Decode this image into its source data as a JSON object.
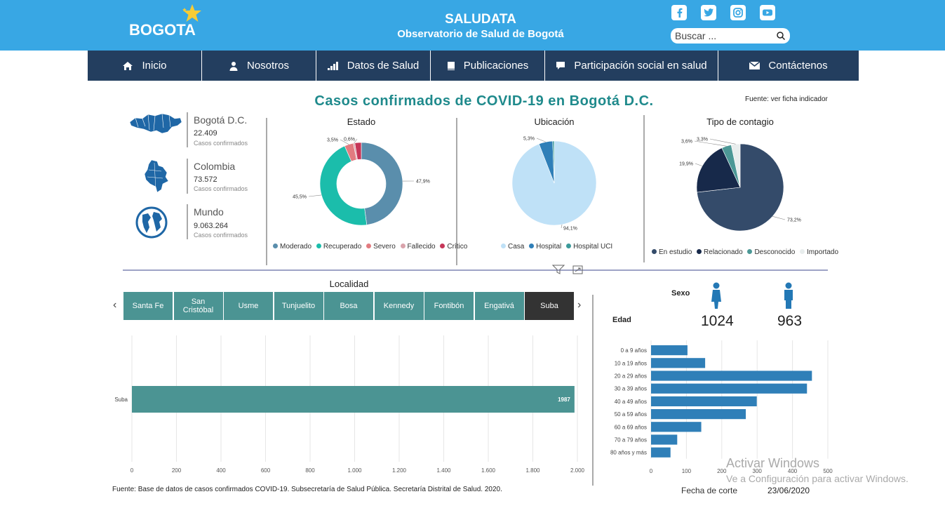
{
  "header": {
    "logo_text": "BOGOTA",
    "title": "SALUDATA",
    "subtitle": "Observatorio de Salud de Bogotá",
    "search_placeholder": "Buscar ...",
    "social_icons": [
      "facebook-icon",
      "twitter-icon",
      "instagram-icon",
      "youtube-icon"
    ]
  },
  "nav": {
    "items": [
      {
        "label": "Inicio",
        "icon": "home-icon"
      },
      {
        "label": "Nosotros",
        "icon": "user-icon"
      },
      {
        "label": "Datos de Salud",
        "icon": "bar-signal-icon"
      },
      {
        "label": "Publicaciones",
        "icon": "book-icon"
      },
      {
        "label": "Participación social en salud",
        "icon": "chat-icon"
      },
      {
        "label": "Contáctenos",
        "icon": "mail-icon"
      }
    ]
  },
  "dashboard": {
    "title": "Casos confirmados de COVID-19 en Bogotá D.C.",
    "source_top": "Fuente: ver ficha indicador",
    "locations": [
      {
        "name": "Bogotá D.C.",
        "value": "22.409",
        "sub": "Casos confirmados",
        "icon": "bogota-map-icon"
      },
      {
        "name": "Colombia",
        "value": "73.572",
        "sub": "Casos confirmados",
        "icon": "colombia-map-icon"
      },
      {
        "name": "Mundo",
        "value": "9.063.264",
        "sub": "Casos confirmados",
        "icon": "globe-icon"
      }
    ],
    "footnote": "Fuente: Base de datos de casos confirmados COVID-19. Subsecretaría de Salud Pública. Secretaría Distrital de Salud. 2020.",
    "localidad_title": "Localidad",
    "tabs": [
      "Santa Fe",
      "San Cristóbal",
      "Usme",
      "Tunjuelito",
      "Bosa",
      "Kennedy",
      "Fontibón",
      "Engativá",
      "Suba"
    ],
    "selected_tab": "Suba",
    "sexo_label": "Sexo",
    "edad_label": "Edad",
    "sexo": {
      "female": "1024",
      "male": "963"
    },
    "fecha_label": "Fecha de corte",
    "fecha_value": "23/06/2020",
    "watermark_line1": "Activar Windows",
    "watermark_line2": "Ve a Configuración para activar Windows.",
    "colors": {
      "teal": "#1f8a8c",
      "header": "#38a7e4",
      "nav": "#233e5f",
      "tab": "#4b9493",
      "bar": "#2f7fb8"
    }
  },
  "chart_data": [
    {
      "type": "pie",
      "title": "Estado",
      "donut": true,
      "labels": [
        "Moderado",
        "Recuperado",
        "Severo",
        "Fallecido",
        "Crítico"
      ],
      "values": [
        47.9,
        45.5,
        3.5,
        0.6,
        2.5
      ],
      "value_labels": [
        "47,9%",
        "45,5%",
        "3,5%",
        "0,6%",
        ""
      ],
      "colors": [
        "#5a8eac",
        "#1bbdab",
        "#e27b80",
        "#d9a3ab",
        "#c63658"
      ]
    },
    {
      "type": "pie",
      "title": "Ubicación",
      "labels": [
        "Casa",
        "Hospital",
        "Hospital UCI"
      ],
      "values": [
        94.1,
        5.3,
        0.6
      ],
      "value_labels": [
        "94,1%",
        "5,3%",
        ""
      ],
      "colors": [
        "#bfe1f7",
        "#2f7fb8",
        "#3b9a9a"
      ]
    },
    {
      "type": "pie",
      "title": "Tipo de contagio",
      "labels": [
        "En estudio",
        "Relacionado",
        "Desconocido",
        "Importado"
      ],
      "values": [
        73.2,
        19.9,
        3.6,
        3.3
      ],
      "value_labels": [
        "73,2%",
        "19,9%",
        "3,6%",
        "3,3%"
      ],
      "colors": [
        "#344b6a",
        "#17294a",
        "#4c9896",
        "#e8eded"
      ]
    },
    {
      "type": "bar",
      "orientation": "horizontal",
      "categories": [
        "Suba"
      ],
      "values": [
        1987
      ],
      "xticks": [
        "0",
        "200",
        "400",
        "600",
        "800",
        "1.000",
        "1.200",
        "1.400",
        "1.600",
        "1.800",
        "2.000"
      ],
      "xlim": [
        0,
        2000
      ]
    },
    {
      "type": "bar",
      "orientation": "horizontal",
      "categories": [
        "0 a 9 años",
        "10 a 19 años",
        "20 a 29 años",
        "30 a 39 años",
        "40 a 49 años",
        "50 a 59 años",
        "60 a 69 años",
        "70 a 79 años",
        "80 años y más"
      ],
      "values": [
        103,
        153,
        455,
        441,
        299,
        268,
        142,
        74,
        55
      ],
      "xticks": [
        "0",
        "100",
        "200",
        "300",
        "400",
        "500"
      ],
      "xlim": [
        0,
        500
      ]
    }
  ]
}
